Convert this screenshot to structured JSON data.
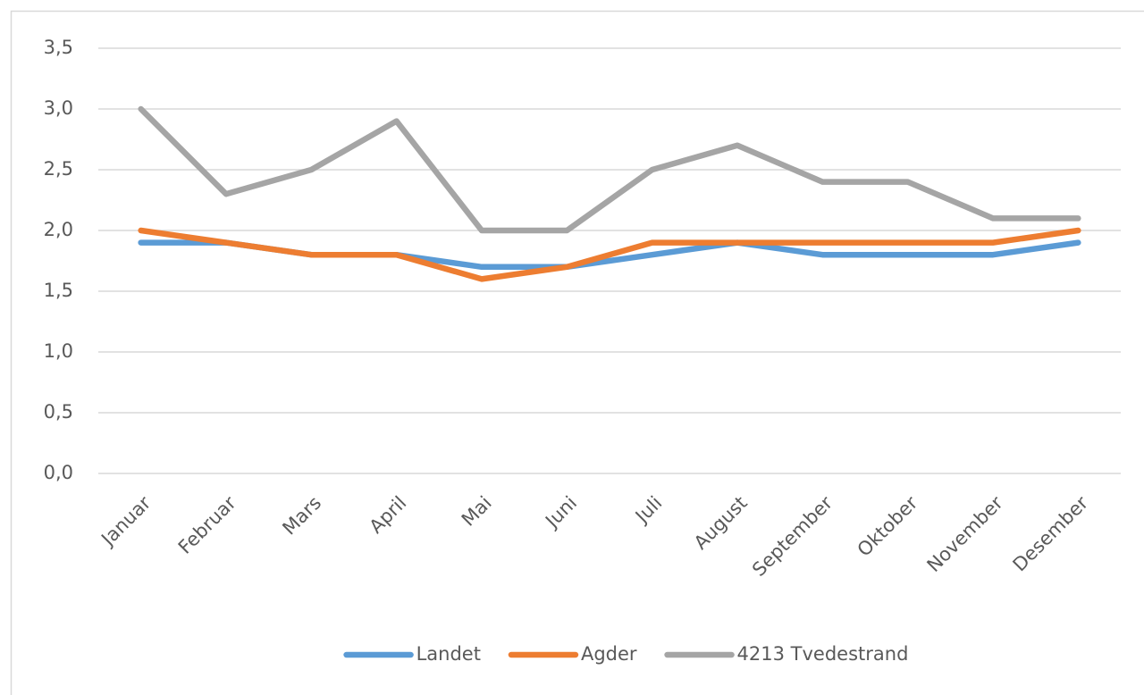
{
  "chart_data": {
    "type": "line",
    "categories": [
      "Januar",
      "Februar",
      "Mars",
      "April",
      "Mai",
      "Juni",
      "Juli",
      "August",
      "September",
      "Oktober",
      "November",
      "Desember"
    ],
    "series": [
      {
        "name": "Landet",
        "color": "#5b9bd5",
        "values": [
          1.9,
          1.9,
          1.8,
          1.8,
          1.7,
          1.7,
          1.8,
          1.9,
          1.8,
          1.8,
          1.8,
          1.9
        ]
      },
      {
        "name": "Agder",
        "color": "#ed7d31",
        "values": [
          2.0,
          1.9,
          1.8,
          1.8,
          1.6,
          1.7,
          1.9,
          1.9,
          1.9,
          1.9,
          1.9,
          2.0
        ]
      },
      {
        "name": "4213 Tvedestrand",
        "color": "#a5a5a5",
        "values": [
          3.0,
          2.3,
          2.5,
          2.9,
          2.0,
          2.0,
          2.5,
          2.7,
          2.4,
          2.4,
          2.1,
          2.1
        ]
      }
    ],
    "ylim": [
      0,
      3.5
    ],
    "yticks": [
      {
        "value": 0,
        "label": "0,0"
      },
      {
        "value": 0.5,
        "label": "0,5"
      },
      {
        "value": 1,
        "label": "1,0"
      },
      {
        "value": 1.5,
        "label": "1,5"
      },
      {
        "value": 2,
        "label": "2,0"
      },
      {
        "value": 2.5,
        "label": "2,5"
      },
      {
        "value": 3,
        "label": "3,0"
      },
      {
        "value": 3.5,
        "label": "3,5"
      }
    ],
    "grid": true,
    "legend": "bottom"
  }
}
